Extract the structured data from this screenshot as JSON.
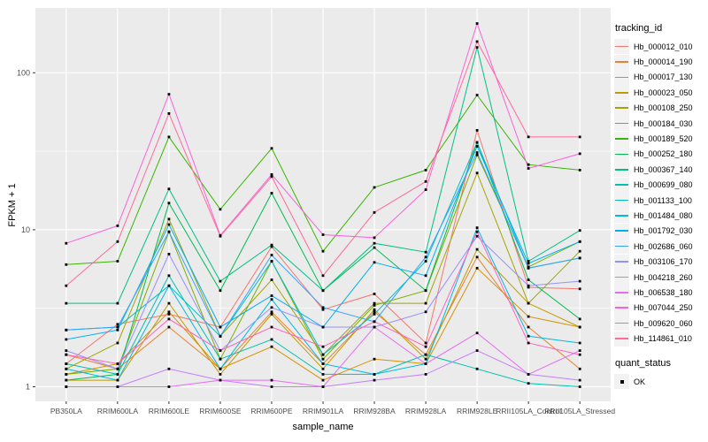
{
  "figure": {
    "y_axis_title": "FPKM + 1",
    "x_axis_title": "sample_name",
    "panel_background": "#EBEBEB",
    "grid_color": "#FFFFFF",
    "tick_color": "#333333",
    "tick_label_color": "#4D4D4D",
    "point_color": "#000000"
  },
  "legend": {
    "tracking_title": "tracking_id",
    "quant_title": "quant_status",
    "quant_label": "OK",
    "key_background": "#F2F2F2"
  },
  "chart_data": {
    "type": "line",
    "x_type": "categorical",
    "y_scale": "log10",
    "xlabel": "sample_name",
    "ylabel": "FPKM + 1",
    "y_breaks": [
      1,
      10,
      100
    ],
    "y_tick_labels": [
      "1",
      "10",
      "100"
    ],
    "y_minor_breaks": [
      3.162,
      31.62
    ],
    "ylim": [
      0.79,
      254
    ],
    "grid": true,
    "legend_position": "right",
    "point_marker": "black-square",
    "quant_status": "OK",
    "categories": [
      "PB350LA",
      "RRIM600LA",
      "RRIM600LE",
      "RRIM600SE",
      "RRIM600PE",
      "RRIM901LA",
      "RRIM928BA",
      "RRIM928LA",
      "RRIM928LE",
      "RRII105LA_Control",
      "RRII105LA_Stressed"
    ],
    "series": [
      {
        "name": "Hb_000012_010",
        "color": "#F8766D",
        "values": [
          1.4,
          2.5,
          2.9,
          2.4,
          7.8,
          3.1,
          3.9,
          1.9,
          43,
          4.3,
          4.2
        ]
      },
      {
        "name": "Hb_000014_190",
        "color": "#EA8331",
        "values": [
          1.6,
          1.3,
          2.4,
          1.3,
          3.0,
          1.4,
          3.0,
          1.6,
          6.7,
          2.4,
          1.3
        ]
      },
      {
        "name": "Hb_000017_130",
        "color": "#D89000",
        "values": [
          1.2,
          1.4,
          3.0,
          1.3,
          1.8,
          1.1,
          1.5,
          1.4,
          5.7,
          2.8,
          2.4
        ]
      },
      {
        "name": "Hb_000023_050",
        "color": "#C09B00",
        "values": [
          1.1,
          1.1,
          3.4,
          1.2,
          2.9,
          1.3,
          3.1,
          1.5,
          7.5,
          3.4,
          2.4
        ]
      },
      {
        "name": "Hb_000108_250",
        "color": "#A3A500",
        "values": [
          1.3,
          1.9,
          11.7,
          2.1,
          4.8,
          1.6,
          3.4,
          3.4,
          23,
          3.4,
          7.3
        ]
      },
      {
        "name": "Hb_000184_030",
        "color": "#7CAE00",
        "values": [
          1.2,
          1.3,
          9.7,
          1.5,
          6.3,
          1.5,
          3.3,
          4.1,
          30,
          5.8,
          8.4
        ]
      },
      {
        "name": "Hb_000189_520",
        "color": "#39B600",
        "values": [
          6.0,
          6.3,
          39,
          13.5,
          33,
          7.3,
          18.6,
          24,
          72,
          26,
          24
        ]
      },
      {
        "name": "Hb_000252_180",
        "color": "#00BB4E",
        "values": [
          1.1,
          1.2,
          14.8,
          4.1,
          17.1,
          4.1,
          7.7,
          4.1,
          36,
          4.8,
          2.7
        ]
      },
      {
        "name": "Hb_000367_140",
        "color": "#00C087",
        "values": [
          3.4,
          3.4,
          18.2,
          4.7,
          8.0,
          4.1,
          8.2,
          7.2,
          145,
          6.3,
          9.9
        ]
      },
      {
        "name": "Hb_000699_080",
        "color": "#00C0AF",
        "values": [
          1.4,
          1.2,
          5.1,
          1.5,
          2.0,
          1.2,
          1.2,
          1.6,
          1.3,
          1.05,
          1.0
        ]
      },
      {
        "name": "Hb_001133_100",
        "color": "#00BFC4",
        "values": [
          2.3,
          2.4,
          4.4,
          2.1,
          6.3,
          1.6,
          2.9,
          6.3,
          36,
          5.7,
          6.6
        ]
      },
      {
        "name": "Hb_001484_080",
        "color": "#00BAE0",
        "values": [
          1.3,
          1.1,
          4.4,
          1.3,
          3.6,
          1.4,
          1.2,
          1.4,
          10.3,
          2.1,
          1.9
        ]
      },
      {
        "name": "Hb_001792_030",
        "color": "#00B0F6",
        "values": [
          2.0,
          2.3,
          10.8,
          2.4,
          3.8,
          2.4,
          6.2,
          5.1,
          34,
          6.1,
          8.4
        ]
      },
      {
        "name": "Hb_002686_060",
        "color": "#35A2FF",
        "values": [
          2.3,
          2.4,
          9.7,
          2.1,
          6.9,
          3.2,
          2.6,
          6.7,
          31,
          5.7,
          6.6
        ]
      },
      {
        "name": "Hb_003106_170",
        "color": "#9590FF",
        "values": [
          1.7,
          1.3,
          7.0,
          1.7,
          3.2,
          2.4,
          2.4,
          3.0,
          9.1,
          4.4,
          4.7
        ]
      },
      {
        "name": "Hb_004218_260",
        "color": "#C77CFF",
        "values": [
          1.0,
          1.0,
          1.3,
          1.1,
          1.0,
          1.0,
          1.1,
          1.2,
          1.7,
          1.2,
          1.1
        ]
      },
      {
        "name": "Hb_006538_180",
        "color": "#E76BF3",
        "values": [
          1.0,
          1.0,
          1.0,
          1.1,
          1.1,
          1.0,
          2.4,
          1.4,
          2.2,
          1.2,
          1.7
        ]
      },
      {
        "name": "Hb_007044_250",
        "color": "#FA62DB",
        "values": [
          8.2,
          10.6,
          73,
          9.2,
          22.5,
          9.3,
          8.9,
          18,
          206,
          24.6,
          30.5
        ]
      },
      {
        "name": "Hb_009620_060",
        "color": "#FF62BC",
        "values": [
          1.6,
          1.4,
          2.7,
          1.7,
          2.4,
          1.8,
          2.6,
          1.8,
          9.7,
          1.9,
          1.6
        ]
      },
      {
        "name": "Hb_114861_010",
        "color": "#FF6A98",
        "values": [
          4.4,
          8.4,
          55,
          9.1,
          21.8,
          5.1,
          12.9,
          20.3,
          158,
          39,
          39
        ]
      }
    ]
  }
}
